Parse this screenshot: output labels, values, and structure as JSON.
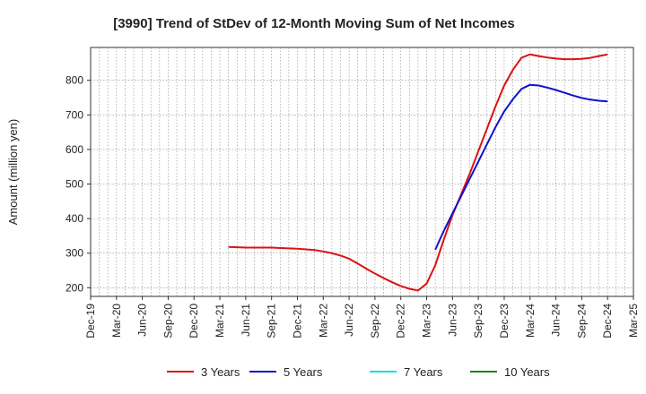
{
  "chart_data": {
    "type": "line",
    "title": "[3990]  Trend of StDev of 12-Month Moving Sum of Net Incomes",
    "ylabel": "Amount (million yen)",
    "xlabel": "",
    "ylim": [
      175,
      895
    ],
    "yticks": [
      200,
      300,
      400,
      500,
      600,
      700,
      800
    ],
    "x_tick_labels": [
      "Dec-19",
      "Mar-20",
      "Jun-20",
      "Sep-20",
      "Dec-20",
      "Mar-21",
      "Jun-21",
      "Sep-21",
      "Dec-21",
      "Mar-22",
      "Jun-22",
      "Sep-22",
      "Dec-22",
      "Mar-23",
      "Jun-23",
      "Sep-23",
      "Dec-23",
      "Mar-24",
      "Jun-24",
      "Sep-24",
      "Dec-24",
      "Mar-25"
    ],
    "legend_position": "bottom",
    "grid": true,
    "series": [
      {
        "name": "3 Years",
        "color": "#dd1111",
        "points": [
          [
            "Apr-21",
            318
          ],
          [
            "May-21",
            317
          ],
          [
            "Jun-21",
            316
          ],
          [
            "Jul-21",
            316
          ],
          [
            "Aug-21",
            316
          ],
          [
            "Sep-21",
            316
          ],
          [
            "Oct-21",
            315
          ],
          [
            "Nov-21",
            314
          ],
          [
            "Dec-21",
            313
          ],
          [
            "Jan-22",
            311
          ],
          [
            "Feb-22",
            309
          ],
          [
            "Mar-22",
            305
          ],
          [
            "Apr-22",
            300
          ],
          [
            "May-22",
            293
          ],
          [
            "Jun-22",
            284
          ],
          [
            "Jul-22",
            270
          ],
          [
            "Aug-22",
            255
          ],
          [
            "Sep-22",
            241
          ],
          [
            "Oct-22",
            228
          ],
          [
            "Nov-22",
            216
          ],
          [
            "Dec-22",
            205
          ],
          [
            "Jan-23",
            197
          ],
          [
            "Feb-23",
            192
          ],
          [
            "Mar-23",
            212
          ],
          [
            "Apr-23",
            265
          ],
          [
            "May-23",
            340
          ],
          [
            "Jun-23",
            410
          ],
          [
            "Jul-23",
            470
          ],
          [
            "Aug-23",
            530
          ],
          [
            "Sep-23",
            595
          ],
          [
            "Oct-23",
            660
          ],
          [
            "Nov-23",
            725
          ],
          [
            "Dec-23",
            785
          ],
          [
            "Jan-24",
            830
          ],
          [
            "Feb-24",
            865
          ],
          [
            "Mar-24",
            875
          ],
          [
            "Apr-24",
            870
          ],
          [
            "May-24",
            866
          ],
          [
            "Jun-24",
            863
          ],
          [
            "Jul-24",
            861
          ],
          [
            "Aug-24",
            861
          ],
          [
            "Sep-24",
            862
          ],
          [
            "Oct-24",
            865
          ],
          [
            "Nov-24",
            870
          ],
          [
            "Dec-24",
            875
          ]
        ]
      },
      {
        "name": "5 Years",
        "color": "#1111cc",
        "points": [
          [
            "Apr-23",
            310
          ],
          [
            "May-23",
            365
          ],
          [
            "Jun-23",
            415
          ],
          [
            "Jul-23",
            465
          ],
          [
            "Aug-23",
            515
          ],
          [
            "Sep-23",
            565
          ],
          [
            "Oct-23",
            615
          ],
          [
            "Nov-23",
            665
          ],
          [
            "Dec-23",
            710
          ],
          [
            "Jan-24",
            745
          ],
          [
            "Feb-24",
            775
          ],
          [
            "Mar-24",
            787
          ],
          [
            "Apr-24",
            785
          ],
          [
            "May-24",
            779
          ],
          [
            "Jun-24",
            772
          ],
          [
            "Jul-24",
            764
          ],
          [
            "Aug-24",
            756
          ],
          [
            "Sep-24",
            749
          ],
          [
            "Oct-24",
            744
          ],
          [
            "Nov-24",
            741
          ],
          [
            "Dec-24",
            739
          ]
        ]
      },
      {
        "name": "7 Years",
        "color": "#11dddd",
        "points": []
      },
      {
        "name": "10 Years",
        "color": "#118811",
        "points": []
      }
    ]
  }
}
